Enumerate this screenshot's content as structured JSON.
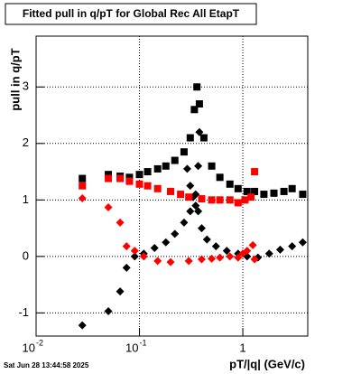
{
  "chart_data": {
    "type": "scatter",
    "title": "Fitted pull in q/pT for Global Rec All EtapT",
    "x_label": "pT/|q| (GeV/c)",
    "y_label": "pull in q/pT",
    "timestamp": "Sat Jun 28 13:44:58 2025",
    "log_x": true,
    "grid": true,
    "xlim": [
      0.01,
      4.25
    ],
    "ylim": [
      -1.41,
      3.9
    ],
    "xticks": [
      {
        "value": 0.01,
        "label": "10",
        "exponent": "-2"
      },
      {
        "value": 0.1,
        "label": "10",
        "exponent": "-1"
      },
      1
    ],
    "yticks": [
      -1,
      0,
      1,
      2,
      3
    ],
    "series": [
      {
        "color": "#000000",
        "marker": "square",
        "x": [
          0.028,
          0.05,
          0.065,
          0.08,
          0.1,
          0.12,
          0.15,
          0.18,
          0.22,
          0.27,
          0.31,
          0.34,
          0.36,
          0.38,
          0.42,
          0.5,
          0.6,
          0.75,
          0.9,
          1.1,
          1.3,
          1.6,
          2.0,
          2.5,
          3.0,
          3.8
        ],
        "values": [
          1.38,
          1.45,
          1.42,
          1.4,
          1.45,
          1.5,
          1.55,
          1.6,
          1.7,
          1.85,
          2.1,
          2.6,
          3.0,
          2.7,
          2.1,
          1.6,
          1.4,
          1.28,
          1.2,
          1.15,
          1.15,
          1.1,
          1.12,
          1.15,
          1.2,
          1.1
        ]
      },
      {
        "color": "#000000",
        "marker": "diamond",
        "x": [
          0.028,
          0.05,
          0.065,
          0.075,
          0.09,
          0.11,
          0.14,
          0.18,
          0.22,
          0.27,
          0.31,
          0.35,
          0.37,
          0.38,
          0.29,
          0.31,
          0.33,
          0.35,
          0.37,
          0.4,
          0.45,
          0.55,
          0.7,
          0.9,
          1.1,
          1.4,
          1.8,
          2.3,
          3.0,
          3.8
        ],
        "values": [
          -1.22,
          -0.97,
          -0.62,
          -0.2,
          0.0,
          0.05,
          0.15,
          0.25,
          0.4,
          0.6,
          0.8,
          1.1,
          1.6,
          2.2,
          1.55,
          1.25,
          1.05,
          0.9,
          0.8,
          0.5,
          0.3,
          0.18,
          0.1,
          0.05,
          0.0,
          -0.02,
          0.05,
          0.12,
          0.18,
          0.25
        ]
      },
      {
        "color": "#ff0000",
        "marker": "square",
        "x": [
          0.028,
          0.05,
          0.065,
          0.08,
          0.1,
          0.12,
          0.15,
          0.2,
          0.25,
          0.3,
          0.4,
          0.5,
          0.6,
          0.75,
          0.9,
          1.05,
          1.2,
          1.3
        ],
        "values": [
          1.25,
          1.38,
          1.38,
          1.33,
          1.28,
          1.25,
          1.2,
          1.15,
          1.1,
          1.05,
          1.02,
          1.0,
          1.0,
          1.0,
          0.95,
          1.0,
          1.05,
          1.5
        ]
      },
      {
        "color": "#ff0000",
        "marker": "diamond",
        "x": [
          0.028,
          0.05,
          0.065,
          0.075,
          0.09,
          0.11,
          0.15,
          0.2,
          0.3,
          0.4,
          0.5,
          0.6,
          0.75,
          0.9,
          1.0,
          1.1,
          1.25,
          1.3
        ],
        "values": [
          1.03,
          0.87,
          0.6,
          0.18,
          0.1,
          0.0,
          -0.08,
          -0.1,
          -0.08,
          -0.05,
          -0.04,
          -0.02,
          0.0,
          -0.02,
          0.05,
          0.1,
          0.2,
          -0.05
        ]
      }
    ]
  }
}
